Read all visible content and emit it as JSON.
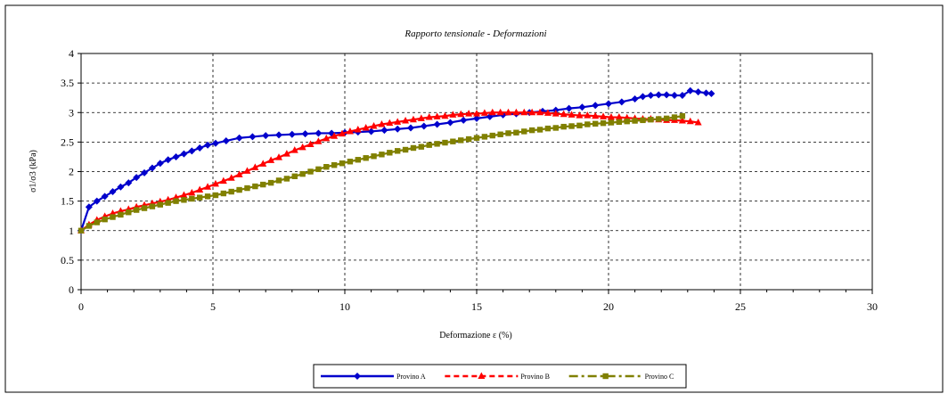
{
  "chart_data": {
    "type": "line",
    "title": "Rapporto tensionale - Deformazioni",
    "xlabel": "Deformazione ε (%)",
    "ylabel": "σ1/σ3 (kPa)",
    "xlim": [
      0,
      30
    ],
    "ylim": [
      0,
      4
    ],
    "xticks": [
      "0",
      "5",
      "10",
      "15",
      "20",
      "25",
      "30"
    ],
    "yticks": [
      "0",
      "0.5",
      "1",
      "1.5",
      "2",
      "2.5",
      "3",
      "3.5",
      "4"
    ],
    "grid": true,
    "legend_position": "bottom",
    "series": [
      {
        "name": "Provino A",
        "color": "#0000cc",
        "marker": "diamond",
        "line": "solid",
        "x": [
          0,
          0.3,
          0.6,
          0.9,
          1.2,
          1.5,
          1.8,
          2.1,
          2.4,
          2.7,
          3.0,
          3.3,
          3.6,
          3.9,
          4.2,
          4.5,
          4.8,
          5.1,
          5.5,
          6.0,
          6.5,
          7.0,
          7.5,
          8.0,
          8.5,
          9.0,
          9.5,
          10.0,
          10.5,
          11.0,
          11.5,
          12.0,
          12.5,
          13.0,
          13.5,
          14.0,
          14.5,
          15.0,
          15.5,
          16.0,
          16.5,
          17.0,
          17.5,
          18.0,
          18.5,
          19.0,
          19.5,
          20.0,
          20.5,
          21.0,
          21.3,
          21.6,
          21.9,
          22.2,
          22.5,
          22.8,
          23.1,
          23.4,
          23.7,
          23.9
        ],
        "y": [
          1.0,
          1.4,
          1.5,
          1.58,
          1.66,
          1.74,
          1.81,
          1.9,
          1.98,
          2.06,
          2.14,
          2.2,
          2.25,
          2.3,
          2.35,
          2.4,
          2.45,
          2.48,
          2.52,
          2.57,
          2.59,
          2.61,
          2.62,
          2.63,
          2.64,
          2.65,
          2.65,
          2.66,
          2.67,
          2.68,
          2.7,
          2.72,
          2.74,
          2.77,
          2.8,
          2.83,
          2.87,
          2.9,
          2.93,
          2.96,
          2.98,
          3.0,
          3.02,
          3.04,
          3.07,
          3.09,
          3.12,
          3.15,
          3.18,
          3.23,
          3.27,
          3.29,
          3.3,
          3.3,
          3.29,
          3.29,
          3.37,
          3.35,
          3.33,
          3.32
        ]
      },
      {
        "name": "Provino B",
        "color": "#ff0000",
        "marker": "triangle",
        "line": "dashed",
        "x": [
          0,
          0.3,
          0.6,
          0.9,
          1.2,
          1.5,
          1.8,
          2.1,
          2.4,
          2.7,
          3.0,
          3.3,
          3.6,
          3.9,
          4.2,
          4.5,
          4.8,
          5.1,
          5.4,
          5.7,
          6.0,
          6.3,
          6.6,
          6.9,
          7.2,
          7.5,
          7.8,
          8.1,
          8.4,
          8.7,
          9.0,
          9.3,
          9.6,
          9.9,
          10.2,
          10.5,
          10.8,
          11.1,
          11.4,
          11.7,
          12.0,
          12.3,
          12.6,
          12.9,
          13.2,
          13.5,
          13.8,
          14.1,
          14.4,
          14.7,
          15.0,
          15.3,
          15.6,
          15.9,
          16.2,
          16.5,
          16.8,
          17.1,
          17.4,
          17.7,
          18.0,
          18.3,
          18.6,
          18.9,
          19.2,
          19.5,
          19.8,
          20.1,
          20.4,
          20.7,
          21.0,
          21.3,
          21.6,
          21.9,
          22.2,
          22.5,
          22.8,
          23.1,
          23.4
        ],
        "y": [
          1.0,
          1.1,
          1.18,
          1.24,
          1.29,
          1.33,
          1.36,
          1.4,
          1.43,
          1.46,
          1.49,
          1.52,
          1.56,
          1.6,
          1.64,
          1.69,
          1.74,
          1.79,
          1.84,
          1.89,
          1.95,
          2.01,
          2.07,
          2.13,
          2.19,
          2.24,
          2.3,
          2.36,
          2.41,
          2.46,
          2.51,
          2.56,
          2.6,
          2.64,
          2.68,
          2.71,
          2.74,
          2.77,
          2.8,
          2.82,
          2.84,
          2.86,
          2.88,
          2.9,
          2.92,
          2.93,
          2.94,
          2.96,
          2.97,
          2.98,
          2.98,
          2.99,
          3.0,
          3.0,
          3.0,
          3.0,
          3.0,
          3.0,
          3.0,
          2.99,
          2.98,
          2.97,
          2.96,
          2.95,
          2.95,
          2.94,
          2.93,
          2.92,
          2.92,
          2.91,
          2.9,
          2.89,
          2.89,
          2.88,
          2.87,
          2.87,
          2.86,
          2.85,
          2.83
        ]
      },
      {
        "name": "Provino C",
        "color": "#808000",
        "marker": "square",
        "line": "dashdot",
        "x": [
          0,
          0.3,
          0.6,
          0.9,
          1.2,
          1.5,
          1.8,
          2.1,
          2.4,
          2.7,
          3.0,
          3.3,
          3.6,
          3.9,
          4.2,
          4.5,
          4.8,
          5.1,
          5.4,
          5.7,
          6.0,
          6.3,
          6.6,
          6.9,
          7.2,
          7.5,
          7.8,
          8.1,
          8.4,
          8.7,
          9.0,
          9.3,
          9.6,
          9.9,
          10.2,
          10.5,
          10.8,
          11.1,
          11.4,
          11.7,
          12.0,
          12.3,
          12.6,
          12.9,
          13.2,
          13.5,
          13.8,
          14.1,
          14.4,
          14.7,
          15.0,
          15.3,
          15.6,
          15.9,
          16.2,
          16.5,
          16.8,
          17.1,
          17.4,
          17.7,
          18.0,
          18.3,
          18.6,
          18.9,
          19.2,
          19.5,
          19.8,
          20.1,
          20.4,
          20.7,
          21.0,
          21.3,
          21.6,
          21.9,
          22.2,
          22.5,
          22.8
        ],
        "y": [
          1.0,
          1.08,
          1.14,
          1.19,
          1.23,
          1.27,
          1.31,
          1.35,
          1.38,
          1.41,
          1.44,
          1.47,
          1.5,
          1.52,
          1.54,
          1.56,
          1.58,
          1.6,
          1.63,
          1.66,
          1.69,
          1.72,
          1.75,
          1.78,
          1.81,
          1.85,
          1.88,
          1.92,
          1.96,
          2.0,
          2.04,
          2.08,
          2.11,
          2.14,
          2.17,
          2.2,
          2.23,
          2.26,
          2.29,
          2.32,
          2.35,
          2.37,
          2.4,
          2.42,
          2.45,
          2.47,
          2.49,
          2.51,
          2.53,
          2.55,
          2.57,
          2.59,
          2.61,
          2.63,
          2.65,
          2.66,
          2.68,
          2.7,
          2.71,
          2.73,
          2.74,
          2.76,
          2.77,
          2.78,
          2.8,
          2.81,
          2.82,
          2.83,
          2.84,
          2.85,
          2.86,
          2.87,
          2.88,
          2.89,
          2.9,
          2.92,
          2.94
        ]
      }
    ]
  }
}
